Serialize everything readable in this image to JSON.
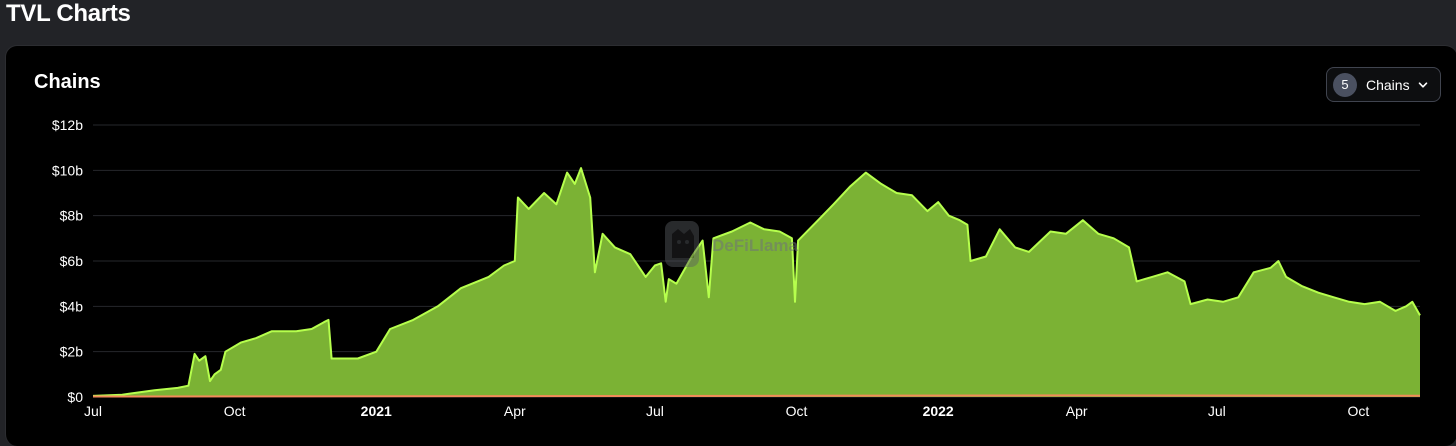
{
  "header": {
    "title": "TVL Charts"
  },
  "chart_panel": {
    "title": "Chains"
  },
  "chains_selector": {
    "count": "5",
    "label": "Chains",
    "icon": "chevron-down-icon"
  },
  "watermark": {
    "text": "DeFiLlama"
  },
  "colors": {
    "area_fill": "#7bb234",
    "area_line": "#b6ff4d",
    "grid": "#26272b",
    "baseline_series": "#f28b5a"
  },
  "chart_data": {
    "type": "area",
    "title": "Chains",
    "xlabel": "",
    "ylabel": "",
    "x_ticks": [
      {
        "label": "Jul",
        "date": "2020-07-01",
        "bold": false
      },
      {
        "label": "Oct",
        "date": "2020-10-01",
        "bold": false
      },
      {
        "label": "2021",
        "date": "2021-01-01",
        "bold": true
      },
      {
        "label": "Apr",
        "date": "2021-04-01",
        "bold": false
      },
      {
        "label": "Jul",
        "date": "2021-07-01",
        "bold": false
      },
      {
        "label": "Oct",
        "date": "2021-10-01",
        "bold": false
      },
      {
        "label": "2022",
        "date": "2022-01-01",
        "bold": true
      },
      {
        "label": "Apr",
        "date": "2022-04-01",
        "bold": false
      },
      {
        "label": "Jul",
        "date": "2022-07-01",
        "bold": false
      },
      {
        "label": "Oct",
        "date": "2022-10-01",
        "bold": false
      }
    ],
    "y_ticks": [
      "$0",
      "$2b",
      "$4b",
      "$6b",
      "$8b",
      "$10b",
      "$12b"
    ],
    "ylim": [
      0,
      12
    ],
    "y_unit": "$b",
    "grid": true,
    "series": [
      {
        "values": [
          [
            "2020-07-01",
            0.05
          ],
          [
            "2020-07-20",
            0.1
          ],
          [
            "2020-08-10",
            0.3
          ],
          [
            "2020-08-25",
            0.4
          ],
          [
            "2020-09-01",
            0.5
          ],
          [
            "2020-09-05",
            1.9
          ],
          [
            "2020-09-08",
            1.6
          ],
          [
            "2020-09-12",
            1.8
          ],
          [
            "2020-09-15",
            0.7
          ],
          [
            "2020-09-18",
            1.0
          ],
          [
            "2020-09-22",
            1.2
          ],
          [
            "2020-09-25",
            2.0
          ],
          [
            "2020-10-05",
            2.4
          ],
          [
            "2020-10-15",
            2.6
          ],
          [
            "2020-10-25",
            2.9
          ],
          [
            "2020-11-10",
            2.9
          ],
          [
            "2020-11-20",
            3.0
          ],
          [
            "2020-11-28",
            3.3
          ],
          [
            "2020-12-01",
            3.4
          ],
          [
            "2020-12-03",
            1.7
          ],
          [
            "2020-12-20",
            1.7
          ],
          [
            "2021-01-01",
            2.0
          ],
          [
            "2021-01-10",
            3.0
          ],
          [
            "2021-01-25",
            3.4
          ],
          [
            "2021-02-10",
            4.0
          ],
          [
            "2021-02-25",
            4.8
          ],
          [
            "2021-03-15",
            5.3
          ],
          [
            "2021-03-25",
            5.8
          ],
          [
            "2021-04-01",
            6.0
          ],
          [
            "2021-04-03",
            8.8
          ],
          [
            "2021-04-10",
            8.3
          ],
          [
            "2021-04-20",
            9.0
          ],
          [
            "2021-04-28",
            8.5
          ],
          [
            "2021-05-05",
            9.9
          ],
          [
            "2021-05-10",
            9.4
          ],
          [
            "2021-05-14",
            10.1
          ],
          [
            "2021-05-20",
            8.8
          ],
          [
            "2021-05-23",
            5.5
          ],
          [
            "2021-05-28",
            7.2
          ],
          [
            "2021-06-05",
            6.6
          ],
          [
            "2021-06-15",
            6.3
          ],
          [
            "2021-06-25",
            5.3
          ],
          [
            "2021-07-01",
            5.8
          ],
          [
            "2021-07-05",
            5.9
          ],
          [
            "2021-07-08",
            4.2
          ],
          [
            "2021-07-10",
            5.2
          ],
          [
            "2021-07-15",
            5.0
          ],
          [
            "2021-07-25",
            6.2
          ],
          [
            "2021-08-01",
            6.9
          ],
          [
            "2021-08-05",
            4.4
          ],
          [
            "2021-08-08",
            7.0
          ],
          [
            "2021-08-20",
            7.3
          ],
          [
            "2021-09-01",
            7.7
          ],
          [
            "2021-09-10",
            7.4
          ],
          [
            "2021-09-20",
            7.3
          ],
          [
            "2021-09-28",
            7.0
          ],
          [
            "2021-09-30",
            4.2
          ],
          [
            "2021-10-02",
            6.9
          ],
          [
            "2021-10-15",
            7.8
          ],
          [
            "2021-10-25",
            8.5
          ],
          [
            "2021-11-05",
            9.3
          ],
          [
            "2021-11-15",
            9.9
          ],
          [
            "2021-11-25",
            9.4
          ],
          [
            "2021-12-05",
            9.0
          ],
          [
            "2021-12-15",
            8.9
          ],
          [
            "2021-12-25",
            8.2
          ],
          [
            "2022-01-01",
            8.6
          ],
          [
            "2022-01-08",
            8.0
          ],
          [
            "2022-01-15",
            7.8
          ],
          [
            "2022-01-20",
            7.6
          ],
          [
            "2022-01-22",
            6.0
          ],
          [
            "2022-02-01",
            6.2
          ],
          [
            "2022-02-10",
            7.4
          ],
          [
            "2022-02-20",
            6.6
          ],
          [
            "2022-03-01",
            6.4
          ],
          [
            "2022-03-15",
            7.3
          ],
          [
            "2022-03-25",
            7.2
          ],
          [
            "2022-04-05",
            7.8
          ],
          [
            "2022-04-15",
            7.2
          ],
          [
            "2022-04-25",
            7.0
          ],
          [
            "2022-05-05",
            6.6
          ],
          [
            "2022-05-10",
            5.1
          ],
          [
            "2022-05-20",
            5.3
          ],
          [
            "2022-05-30",
            5.5
          ],
          [
            "2022-06-10",
            5.1
          ],
          [
            "2022-06-14",
            4.1
          ],
          [
            "2022-06-25",
            4.3
          ],
          [
            "2022-07-05",
            4.2
          ],
          [
            "2022-07-15",
            4.4
          ],
          [
            "2022-07-25",
            5.5
          ],
          [
            "2022-08-05",
            5.7
          ],
          [
            "2022-08-10",
            6.0
          ],
          [
            "2022-08-15",
            5.3
          ],
          [
            "2022-08-25",
            4.9
          ],
          [
            "2022-09-05",
            4.6
          ],
          [
            "2022-09-15",
            4.4
          ],
          [
            "2022-09-25",
            4.2
          ],
          [
            "2022-10-05",
            4.1
          ],
          [
            "2022-10-15",
            4.2
          ],
          [
            "2022-10-25",
            3.8
          ],
          [
            "2022-11-01",
            4.0
          ],
          [
            "2022-11-05",
            4.2
          ],
          [
            "2022-11-10",
            3.6
          ]
        ]
      },
      {
        "values": [
          [
            "2020-07-01",
            0.0
          ],
          [
            "2021-10-01",
            0.03
          ],
          [
            "2022-04-01",
            0.05
          ],
          [
            "2022-11-10",
            0.03
          ]
        ]
      }
    ]
  }
}
